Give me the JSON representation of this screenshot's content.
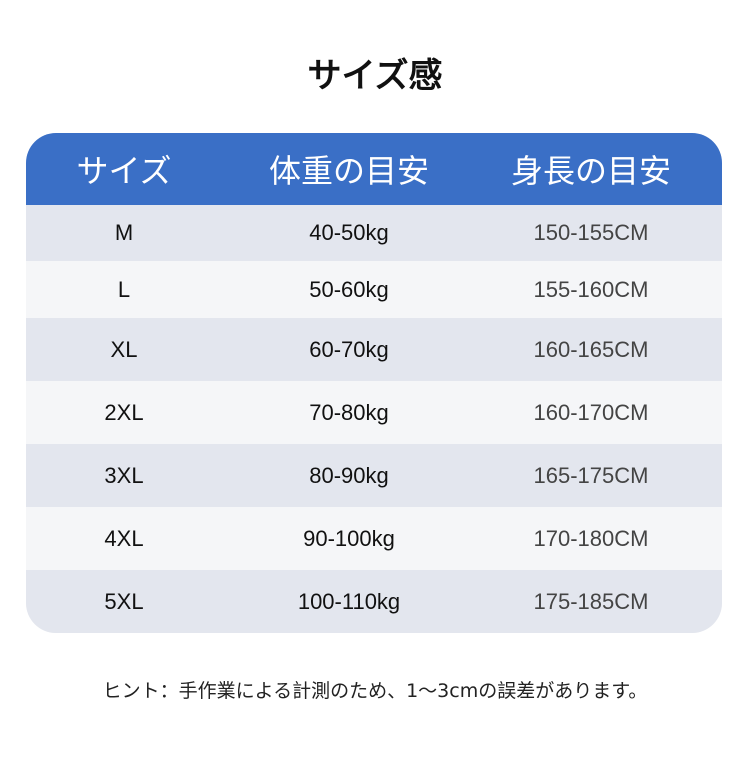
{
  "title": "サイズ感",
  "headers": [
    "サイズ",
    "体重の目安",
    "身長の目安"
  ],
  "rows": [
    {
      "size": "M",
      "weight": "40-50kg",
      "height": "150-155CM"
    },
    {
      "size": "L",
      "weight": "50-60kg",
      "height": "155-160CM"
    },
    {
      "size": "XL",
      "weight": "60-70kg",
      "height": "160-165CM"
    },
    {
      "size": "2XL",
      "weight": "70-80kg",
      "height": "160-170CM"
    },
    {
      "size": "3XL",
      "weight": "80-90kg",
      "height": "165-175CM"
    },
    {
      "size": "4XL",
      "weight": "90-100kg",
      "height": "170-180CM"
    },
    {
      "size": "5XL",
      "weight": "100-110kg",
      "height": "175-185CM"
    }
  ],
  "hint": "ヒント：手作業による計測のため、1〜3cmの誤差があります。",
  "colors": {
    "header": "#3a6fc6",
    "row_odd": "#e3e6ee",
    "row_even": "#f5f6f8"
  }
}
